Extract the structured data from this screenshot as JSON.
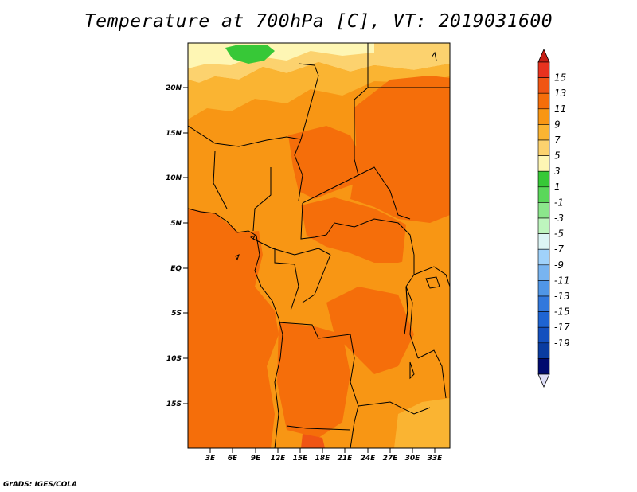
{
  "title": "Temperature at 700hPa [C], VT: 2019031600",
  "credit": "GrADS: IGES/COLA",
  "map": {
    "lat_ticks": [
      "20N",
      "15N",
      "10N",
      "5N",
      "EQ",
      "5S",
      "10S",
      "15S"
    ],
    "lon_ticks": [
      "3E",
      "6E",
      "9E",
      "12E",
      "15E",
      "18E",
      "21E",
      "24E",
      "27E",
      "30E",
      "33E"
    ]
  },
  "colorbar": {
    "labels": [
      "15",
      "13",
      "11",
      "9",
      "7",
      "5",
      "3",
      "1",
      "-1",
      "-3",
      "-5",
      "-7",
      "-9",
      "-11",
      "-13",
      "-15",
      "-17",
      "-19"
    ],
    "colors": [
      "#e8321e",
      "#f05514",
      "#f56e0a",
      "#f89614",
      "#fab432",
      "#fcd26e",
      "#fef6b4",
      "#37c837",
      "#5ad75a",
      "#8ce68c",
      "#bef5be",
      "#dcf5f5",
      "#a0d2fa",
      "#78b4f0",
      "#5096e6",
      "#3278dc",
      "#1e64d2",
      "#1450be",
      "#0a3ca0",
      "#000a6e"
    ],
    "top_arrow_color": "#c81e14",
    "bottom_arrow_color": "#dcdcf5"
  },
  "field_colors": {
    "c13": "#f05514",
    "c11": "#f56e0a",
    "c9": "#f89614",
    "c7": "#fab432",
    "c5": "#fcd26e",
    "c3": "#fef6b4",
    "c1": "#37c837"
  }
}
